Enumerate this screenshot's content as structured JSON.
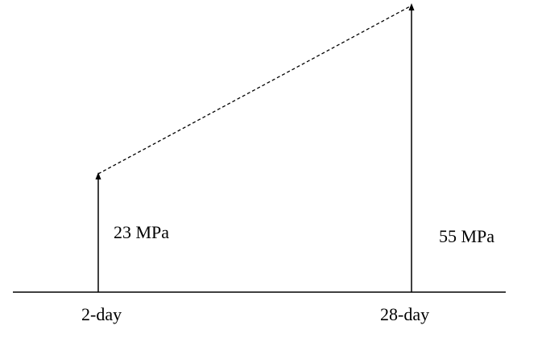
{
  "diagram": {
    "columns": [
      {
        "category": "2-day",
        "value_label": "23 MPa"
      },
      {
        "category": "28-day",
        "value_label": "55 MPa"
      }
    ],
    "connector_style": "dashed",
    "line_color": "#000000"
  }
}
